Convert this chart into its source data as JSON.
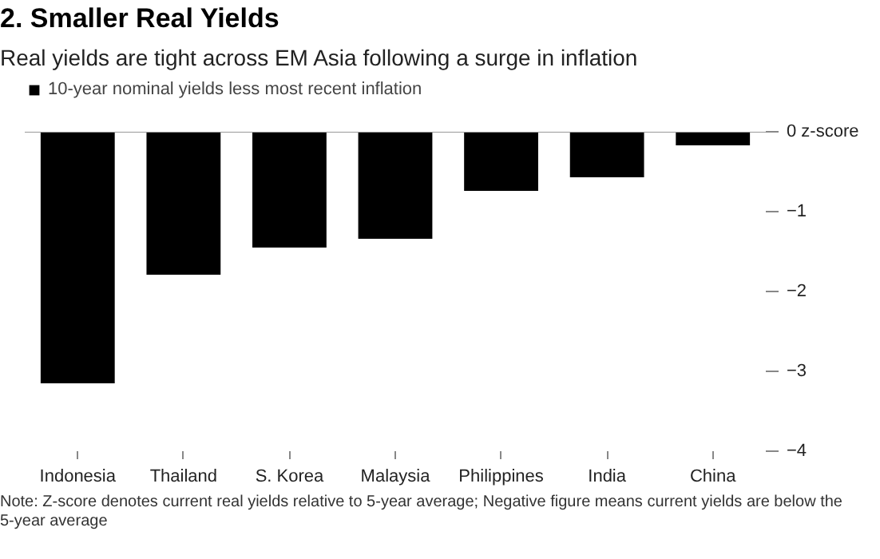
{
  "chart_data": {
    "type": "bar",
    "title": "2. Smaller Real Yields",
    "subtitle": "Real yields are tight across EM Asia following a surge in inflation",
    "categories": [
      "Indonesia",
      "Thailand",
      "S. Korea",
      "Malaysia",
      "Philippines",
      "India",
      "China"
    ],
    "series": [
      {
        "name": "10-year nominal yields less most recent inflation",
        "color": "#000000",
        "values": [
          -3.15,
          -1.79,
          -1.45,
          -1.34,
          -0.74,
          -0.57,
          -0.17
        ]
      }
    ],
    "ylim": [
      -4,
      0
    ],
    "yticks": [
      {
        "value": 0,
        "label": "0 z-score"
      },
      -1,
      -2,
      -3,
      -4
    ],
    "grid": false,
    "legend": "top left",
    "annotations": [
      "Note: Z-score denotes current real yields relative to 5-year average; Negative figure means current yields are below the 5-year average"
    ]
  }
}
